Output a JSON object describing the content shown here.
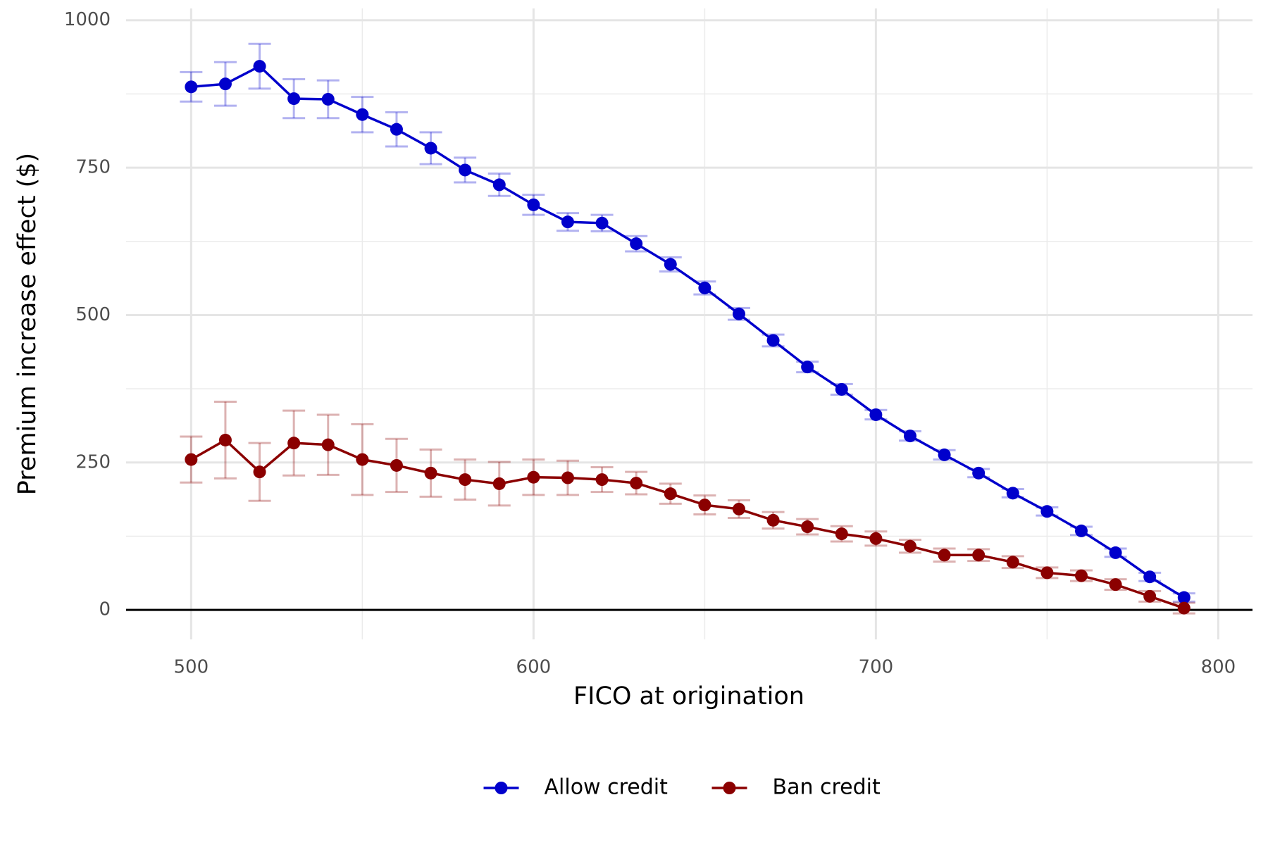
{
  "chart_data": {
    "type": "line",
    "x_label": "FICO at origination",
    "y_label": "Premium increase effect ($)",
    "x": [
      500,
      510,
      520,
      530,
      540,
      550,
      560,
      570,
      580,
      590,
      600,
      610,
      620,
      630,
      640,
      650,
      660,
      670,
      680,
      690,
      700,
      710,
      720,
      730,
      740,
      750,
      760,
      770,
      780,
      790
    ],
    "series": [
      {
        "name": "Allow credit",
        "color": "#0000cc",
        "values": [
          887,
          892,
          922,
          867,
          866,
          840,
          815,
          783,
          746,
          721,
          687,
          658,
          656,
          621,
          586,
          546,
          502,
          457,
          412,
          374,
          331,
          295,
          263,
          232,
          198,
          167,
          134,
          97,
          56,
          21
        ],
        "errors": [
          25,
          37,
          38,
          33,
          32,
          30,
          29,
          27,
          21,
          19,
          17,
          15,
          14,
          13,
          12,
          11,
          10,
          10,
          9,
          9,
          8,
          8,
          8,
          7,
          7,
          7,
          7,
          7,
          7,
          7
        ]
      },
      {
        "name": "Ban credit",
        "color": "#8b0000",
        "values": [
          255,
          288,
          234,
          283,
          280,
          255,
          245,
          232,
          221,
          214,
          225,
          224,
          221,
          215,
          197,
          178,
          171,
          152,
          141,
          129,
          121,
          108,
          93,
          93,
          81,
          63,
          58,
          43,
          23,
          3
        ],
        "errors": [
          39,
          65,
          49,
          55,
          51,
          60,
          45,
          40,
          34,
          37,
          30,
          29,
          21,
          19,
          17,
          16,
          15,
          14,
          13,
          13,
          12,
          11,
          11,
          10,
          10,
          9,
          9,
          9,
          9,
          9
        ]
      }
    ],
    "xlim": [
      481,
      810
    ],
    "xticks": [
      500,
      600,
      700,
      800
    ],
    "ylim": [
      -50,
      1020
    ],
    "yticks": [
      0,
      250,
      500,
      750,
      1000
    ],
    "hline": 0,
    "grid": true,
    "legend": "bottom"
  }
}
